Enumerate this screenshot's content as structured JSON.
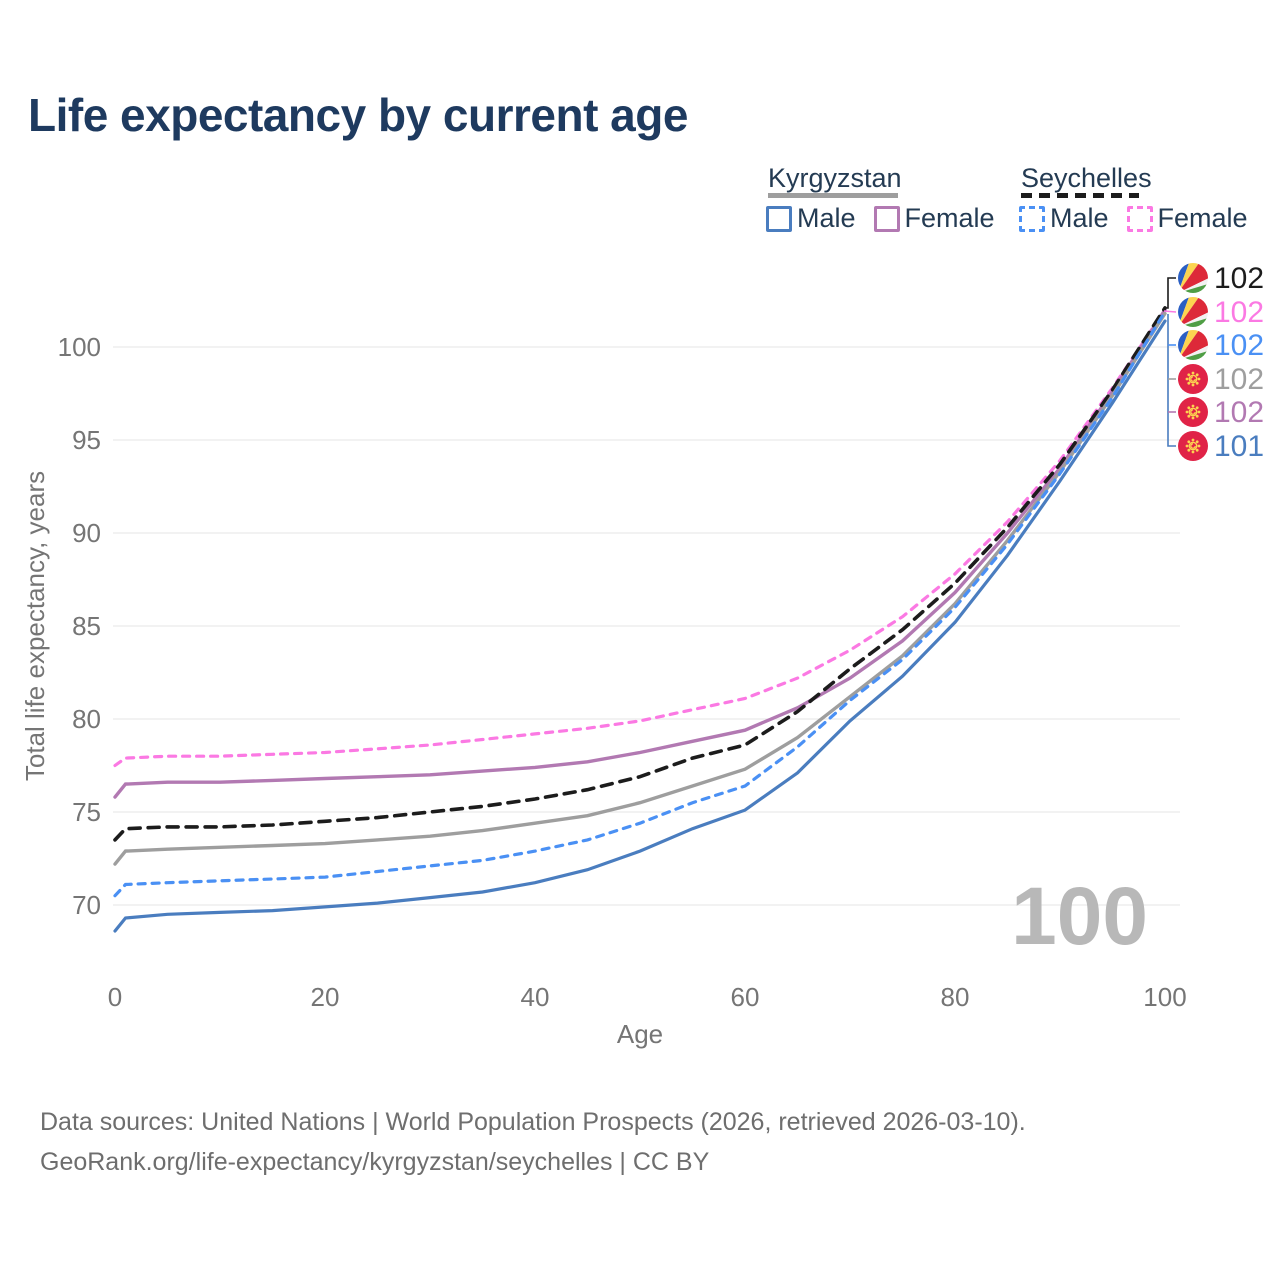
{
  "title": "Life expectancy by current age",
  "legend": {
    "groups": [
      {
        "name": "Kyrgyzstan",
        "line_style": "solid",
        "underline_color": "#9e9e9e",
        "items": [
          {
            "label": "Male",
            "color": "#4a7dbf"
          },
          {
            "label": "Female",
            "color": "#b279b2"
          }
        ]
      },
      {
        "name": "Seychelles",
        "line_style": "dashed",
        "underline_color": "#1c1c1c",
        "items": [
          {
            "label": "Male",
            "color": "#4a90f4"
          },
          {
            "label": "Female",
            "color": "#fb79e3"
          }
        ]
      }
    ]
  },
  "watermark_age": "100",
  "chart_data": {
    "type": "line",
    "title": "Life expectancy by current age",
    "xlabel": "Age",
    "ylabel": "Total life expectancy, years",
    "x_ticks": [
      0,
      20,
      40,
      60,
      80,
      100
    ],
    "y_ticks": [
      70,
      75,
      80,
      85,
      90,
      95,
      100
    ],
    "xlim": [
      0,
      100
    ],
    "ylim": [
      70,
      100
    ],
    "grid": "horizontal",
    "legend_position": "top-right",
    "x": [
      0,
      1,
      5,
      10,
      15,
      20,
      25,
      30,
      35,
      40,
      45,
      50,
      55,
      60,
      65,
      70,
      75,
      80,
      85,
      90,
      95,
      100
    ],
    "series": [
      {
        "id": "sc_female",
        "name": "Seychelles Female",
        "country": "Seychelles",
        "sex": "Female",
        "color": "#fb79e3",
        "dash": true,
        "dash_pattern": "7 7",
        "width": 3.2,
        "values": [
          77.5,
          77.9,
          78.0,
          78.0,
          78.1,
          78.2,
          78.4,
          78.6,
          78.9,
          79.2,
          79.5,
          79.9,
          80.5,
          81.1,
          82.2,
          83.7,
          85.5,
          87.8,
          90.6,
          93.9,
          97.8,
          102.0
        ]
      },
      {
        "id": "kg_female",
        "name": "Kyrgyzstan Female",
        "country": "Kyrgyzstan",
        "sex": "Female",
        "color": "#b279b2",
        "dash": false,
        "dash_pattern": "",
        "width": 3.4,
        "values": [
          75.8,
          76.5,
          76.6,
          76.6,
          76.7,
          76.8,
          76.9,
          77.0,
          77.2,
          77.4,
          77.7,
          78.2,
          78.8,
          79.4,
          80.6,
          82.2,
          84.2,
          86.8,
          90.0,
          93.5,
          97.6,
          102.0
        ]
      },
      {
        "id": "sc_all",
        "name": "Seychelles (both sexes)",
        "country": "Seychelles",
        "sex": "All",
        "color": "#1c1c1c",
        "dash": true,
        "dash_pattern": "11 8",
        "width": 3.6,
        "values": [
          73.5,
          74.1,
          74.2,
          74.2,
          74.3,
          74.5,
          74.7,
          75.0,
          75.3,
          75.7,
          76.2,
          76.9,
          77.9,
          78.6,
          80.4,
          82.7,
          84.8,
          87.3,
          90.3,
          93.7,
          97.7,
          102.1
        ]
      },
      {
        "id": "kg_all",
        "name": "Kyrgyzstan (both sexes)",
        "country": "Kyrgyzstan",
        "sex": "All",
        "color": "#9e9e9e",
        "dash": false,
        "dash_pattern": "",
        "width": 3.4,
        "values": [
          72.2,
          72.9,
          73.0,
          73.1,
          73.2,
          73.3,
          73.5,
          73.7,
          74.0,
          74.4,
          74.8,
          75.5,
          76.4,
          77.3,
          79.0,
          81.2,
          83.4,
          86.2,
          89.6,
          93.3,
          97.4,
          101.8
        ]
      },
      {
        "id": "sc_male",
        "name": "Seychelles Male",
        "country": "Seychelles",
        "sex": "Male",
        "color": "#4a90f4",
        "dash": true,
        "dash_pattern": "7 7",
        "width": 3.2,
        "values": [
          70.5,
          71.1,
          71.2,
          71.3,
          71.4,
          71.5,
          71.8,
          72.1,
          72.4,
          72.9,
          73.5,
          74.4,
          75.5,
          76.4,
          78.5,
          81.0,
          83.2,
          86.0,
          89.4,
          93.2,
          97.3,
          101.9
        ]
      },
      {
        "id": "kg_male",
        "name": "Kyrgyzstan Male",
        "country": "Kyrgyzstan",
        "sex": "Male",
        "color": "#4a7dbf",
        "dash": false,
        "dash_pattern": "",
        "width": 3.2,
        "values": [
          68.6,
          69.3,
          69.5,
          69.6,
          69.7,
          69.9,
          70.1,
          70.4,
          70.7,
          71.2,
          71.9,
          72.9,
          74.1,
          75.1,
          77.1,
          79.9,
          82.3,
          85.2,
          88.8,
          92.8,
          97.0,
          101.4
        ]
      }
    ],
    "end_labels": [
      {
        "flag": "seychelles-flag-icon",
        "flag_id": "flag-seychelles",
        "value": "102",
        "color": "#1c1c1c",
        "series": "sc_all"
      },
      {
        "flag": "seychelles-flag-icon",
        "flag_id": "flag-seychelles",
        "value": "102",
        "color": "#fb79e3",
        "series": "sc_female"
      },
      {
        "flag": "seychelles-flag-icon",
        "flag_id": "flag-seychelles",
        "value": "102",
        "color": "#4a90f4",
        "series": "sc_male"
      },
      {
        "flag": "kyrgyzstan-flag-icon",
        "flag_id": "flag-kyrgyzstan",
        "value": "102",
        "color": "#9e9e9e",
        "series": "kg_all"
      },
      {
        "flag": "kyrgyzstan-flag-icon",
        "flag_id": "flag-kyrgyzstan",
        "value": "102",
        "color": "#b279b2",
        "series": "kg_female"
      },
      {
        "flag": "kyrgyzstan-flag-icon",
        "flag_id": "flag-kyrgyzstan",
        "value": "101",
        "color": "#4a7dbf",
        "series": "kg_male"
      }
    ],
    "colors": {
      "title": "#1e3a5f",
      "axis_text": "#757575",
      "gridline": "#ebebeb",
      "watermark": "#b8b8b8",
      "legend_text": "#243b53",
      "footer_text": "#6e6e6e"
    }
  },
  "footer": {
    "line1": "Data sources: United Nations | World Population Prospects (2026, retrieved 2026-03-10).",
    "line2": "GeoRank.org/life-expectancy/kyrgyzstan/seychelles | CC BY"
  }
}
